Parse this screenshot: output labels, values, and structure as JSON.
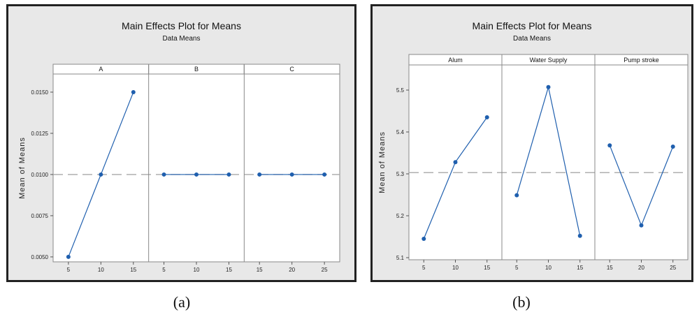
{
  "chart_data": [
    {
      "type": "line",
      "title": "Main Effects Plot for Means",
      "subtitle": "Data Means",
      "ylabel": "Mean of Means",
      "ylim": [
        0.0047,
        0.0161
      ],
      "yticks": [
        "0.0050",
        "0.0075",
        "0.0100",
        "0.0125",
        "0.0150"
      ],
      "yticks_values": [
        0.005,
        0.0075,
        0.01,
        0.0125,
        0.015
      ],
      "reference_line": 0.01,
      "caption": "(a)",
      "line_color": "#1f5fae",
      "panels": [
        {
          "name": "A",
          "x": [
            "5",
            "10",
            "15"
          ],
          "values": [
            0.005,
            0.01,
            0.015
          ]
        },
        {
          "name": "B",
          "x": [
            "5",
            "10",
            "15"
          ],
          "values": [
            0.01,
            0.01,
            0.01
          ]
        },
        {
          "name": "C",
          "x": [
            "15",
            "20",
            "25"
          ],
          "values": [
            0.01,
            0.01,
            0.01
          ]
        }
      ]
    },
    {
      "type": "line",
      "title": "Main Effects Plot for Means",
      "subtitle": "Data Means",
      "ylabel": "Mean of Means",
      "ylim": [
        5.095,
        5.56
      ],
      "yticks": [
        "5.1",
        "5.2",
        "5.3",
        "5.4",
        "5.5"
      ],
      "yticks_values": [
        5.1,
        5.2,
        5.3,
        5.4,
        5.5
      ],
      "reference_line": 5.303,
      "caption": "(b)",
      "line_color": "#1f5fae",
      "panels": [
        {
          "name": "Alum",
          "x": [
            "5",
            "10",
            "15"
          ],
          "values": [
            5.145,
            5.328,
            5.435
          ]
        },
        {
          "name": "Water Supply",
          "x": [
            "5",
            "10",
            "15"
          ],
          "values": [
            5.249,
            5.507,
            5.152
          ]
        },
        {
          "name": "Pump stroke",
          "x": [
            "15",
            "20",
            "25"
          ],
          "values": [
            5.368,
            5.177,
            5.365
          ]
        }
      ]
    }
  ]
}
